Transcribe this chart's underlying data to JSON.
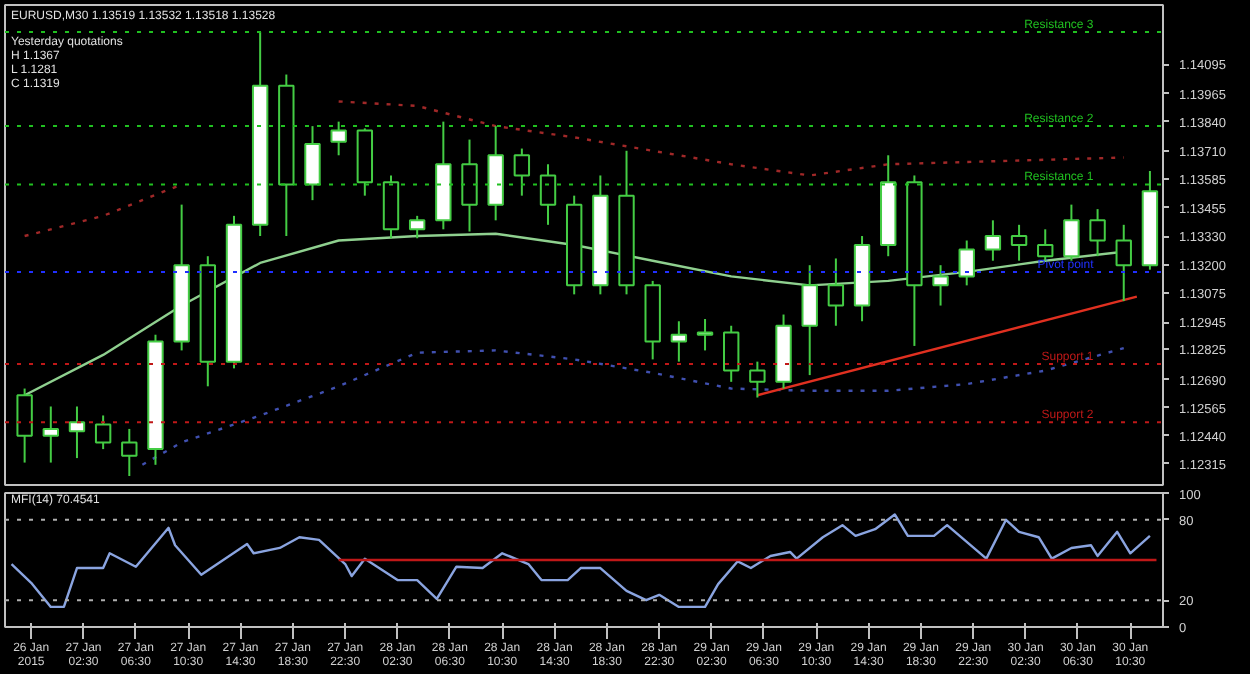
{
  "chart_data": [
    {
      "type": "candlestick",
      "title": "EURUSD,M30  1.13519 1.13532 1.13518 1.13528",
      "color": "#44cc44",
      "annotations": [
        "Yesterday quotations",
        "H 1.1367",
        "L 1.1281",
        "C 1.1319"
      ],
      "x": [
        "2015-01-26T22:00",
        "2015-01-27T00:00",
        "2015-01-27T02:00",
        "2015-01-27T04:00",
        "2015-01-27T06:00",
        "2015-01-27T08:00",
        "2015-01-27T10:00",
        "2015-01-27T12:00",
        "2015-01-27T14:00",
        "2015-01-27T16:00",
        "2015-01-27T18:00",
        "2015-01-27T20:00",
        "2015-01-27T22:00",
        "2015-01-28T00:00",
        "2015-01-28T02:00",
        "2015-01-28T04:00",
        "2015-01-28T06:00",
        "2015-01-28T08:00",
        "2015-01-28T10:00",
        "2015-01-28T12:00",
        "2015-01-28T14:00",
        "2015-01-28T16:00",
        "2015-01-28T18:00",
        "2015-01-28T20:00",
        "2015-01-28T22:00",
        "2015-01-29T00:00",
        "2015-01-29T02:00",
        "2015-01-29T04:00",
        "2015-01-29T06:00",
        "2015-01-29T08:00",
        "2015-01-29T10:00",
        "2015-01-29T12:00",
        "2015-01-29T14:00",
        "2015-01-29T16:00",
        "2015-01-29T18:00",
        "2015-01-29T20:00",
        "2015-01-29T22:00",
        "2015-01-30T00:00",
        "2015-01-30T02:00",
        "2015-01-30T04:00",
        "2015-01-30T06:00",
        "2015-01-30T08:00",
        "2015-01-30T10:00",
        "2015-01-30T12:00"
      ],
      "ohlc": [
        [
          1.1262,
          1.1265,
          1.1232,
          1.1244
        ],
        [
          1.1244,
          1.1257,
          1.1232,
          1.1247
        ],
        [
          1.1246,
          1.1257,
          1.1234,
          1.125
        ],
        [
          1.1249,
          1.1253,
          1.1238,
          1.1241
        ],
        [
          1.1241,
          1.1247,
          1.1226,
          1.1235
        ],
        [
          1.1238,
          1.1289,
          1.1231,
          1.1286
        ],
        [
          1.1286,
          1.1347,
          1.1282,
          1.132
        ],
        [
          1.132,
          1.1324,
          1.1266,
          1.1277
        ],
        [
          1.1277,
          1.1342,
          1.1274,
          1.1338
        ],
        [
          1.1338,
          1.1424,
          1.1333,
          1.14
        ],
        [
          1.14,
          1.1405,
          1.1333,
          1.1356
        ],
        [
          1.1356,
          1.1382,
          1.1349,
          1.1374
        ],
        [
          1.1375,
          1.1384,
          1.1369,
          1.138
        ],
        [
          1.138,
          1.1381,
          1.1351,
          1.1357
        ],
        [
          1.1357,
          1.136,
          1.1332,
          1.1336
        ],
        [
          1.1336,
          1.1342,
          1.1332,
          1.134
        ],
        [
          1.134,
          1.1384,
          1.1336,
          1.1365
        ],
        [
          1.1365,
          1.1376,
          1.1335,
          1.1347
        ],
        [
          1.1347,
          1.1382,
          1.134,
          1.1369
        ],
        [
          1.1369,
          1.1372,
          1.1351,
          1.136
        ],
        [
          1.136,
          1.1365,
          1.1338,
          1.1347
        ],
        [
          1.1347,
          1.1351,
          1.1307,
          1.1311
        ],
        [
          1.1311,
          1.136,
          1.1307,
          1.1351
        ],
        [
          1.1351,
          1.1371,
          1.1307,
          1.1311
        ],
        [
          1.1311,
          1.1313,
          1.1278,
          1.1286
        ],
        [
          1.1286,
          1.1295,
          1.1277,
          1.1289
        ],
        [
          1.1289,
          1.1296,
          1.1282,
          1.129
        ],
        [
          1.129,
          1.1293,
          1.1268,
          1.1273
        ],
        [
          1.1273,
          1.1277,
          1.1261,
          1.1268
        ],
        [
          1.1268,
          1.1298,
          1.1265,
          1.1293
        ],
        [
          1.1293,
          1.132,
          1.1271,
          1.1311
        ],
        [
          1.1311,
          1.1323,
          1.1293,
          1.1302
        ],
        [
          1.1302,
          1.1333,
          1.1295,
          1.1329
        ],
        [
          1.1329,
          1.1369,
          1.1324,
          1.1357
        ],
        [
          1.1357,
          1.136,
          1.1284,
          1.1311
        ],
        [
          1.1311,
          1.132,
          1.1302,
          1.1315
        ],
        [
          1.1315,
          1.1331,
          1.1311,
          1.1327
        ],
        [
          1.1327,
          1.134,
          1.1322,
          1.1333
        ],
        [
          1.1333,
          1.1338,
          1.1322,
          1.1329
        ],
        [
          1.1329,
          1.1336,
          1.1322,
          1.1324
        ],
        [
          1.1324,
          1.1347,
          1.1322,
          1.134
        ],
        [
          1.134,
          1.1345,
          1.1324,
          1.1331
        ],
        [
          1.1331,
          1.1338,
          1.1304,
          1.132
        ],
        [
          1.132,
          1.1362,
          1.1318,
          1.1353
        ]
      ],
      "series": [
        {
          "type": "line",
          "color": "#8fd08f",
          "line_style": "solid",
          "x": [
            "2015-01-26T22:00",
            "2015-01-27T04:00",
            "2015-01-27T10:00",
            "2015-01-27T16:00",
            "2015-01-27T22:00",
            "2015-01-28T04:00",
            "2015-01-28T10:00",
            "2015-01-28T16:00",
            "2015-01-28T22:00",
            "2015-01-29T04:00",
            "2015-01-29T10:00",
            "2015-01-29T16:00",
            "2015-01-29T22:00",
            "2015-01-30T04:00",
            "2015-01-30T10:00"
          ],
          "values": [
            1.1262,
            1.128,
            1.1302,
            1.1321,
            1.1331,
            1.1333,
            1.1334,
            1.1329,
            1.1322,
            1.1315,
            1.1311,
            1.1313,
            1.1317,
            1.1322,
            1.1326
          ]
        },
        {
          "type": "line",
          "color": "#a02828",
          "line_style": "dotted",
          "x": [
            "2015-01-26T22:00",
            "2015-01-27T04:00",
            "2015-01-27T10:00",
            "2015-01-27T16:00",
            "2015-01-27T22:00",
            "2015-01-28T04:00",
            "2015-01-28T10:00",
            "2015-01-28T16:00",
            "2015-01-28T22:00",
            "2015-01-29T04:00",
            "2015-01-29T10:00",
            "2015-01-29T16:00",
            "2015-01-29T22:00",
            "2015-01-30T04:00",
            "2015-01-30T10:00"
          ],
          "values": [
            1.1333,
            1.1342,
            1.1356,
            null,
            1.1393,
            1.1391,
            1.1382,
            1.1377,
            1.1371,
            1.1365,
            1.136,
            1.1365,
            1.1366,
            1.1367,
            1.1368
          ]
        },
        {
          "type": "line",
          "color": "#4050b0",
          "line_style": "dotted",
          "x": [
            "2015-01-27T07:00",
            "2015-01-27T10:00",
            "2015-01-27T16:00",
            "2015-01-27T22:00",
            "2015-01-28T04:00",
            "2015-01-28T10:00",
            "2015-01-28T16:00",
            "2015-01-28T22:00",
            "2015-01-29T04:00",
            "2015-01-29T10:00",
            "2015-01-29T16:00",
            "2015-01-29T22:00",
            "2015-01-30T04:00",
            "2015-01-30T10:00"
          ],
          "values": [
            1.1231,
            1.1241,
            1.1253,
            1.1266,
            1.1281,
            1.1282,
            1.1278,
            1.1272,
            1.1265,
            1.1264,
            1.1264,
            1.1267,
            1.1273,
            1.1283
          ]
        },
        {
          "type": "line",
          "color": "#e03020",
          "line_style": "solid",
          "x": [
            "2015-01-29T06:00",
            "2015-01-30T11:00"
          ],
          "values": [
            1.1262,
            1.1306
          ]
        }
      ],
      "ref_lines": [
        {
          "axis": "y",
          "value": 1.1424,
          "label": "Resistance 3",
          "color": "#20c020",
          "line_style": "dotted"
        },
        {
          "axis": "y",
          "value": 1.1382,
          "label": "Resistance 2",
          "color": "#20c020",
          "line_style": "dotted"
        },
        {
          "axis": "y",
          "value": 1.1356,
          "label": "Resistance 1",
          "color": "#20c020",
          "line_style": "dotted"
        },
        {
          "axis": "y",
          "value": 1.1317,
          "label": "Pivot point",
          "color": "#2030ff",
          "line_style": "dotted"
        },
        {
          "axis": "y",
          "value": 1.1276,
          "label": "Support 1",
          "color": "#c01818",
          "line_style": "dotted"
        },
        {
          "axis": "y",
          "value": 1.125,
          "label": "Support 2",
          "color": "#c01818",
          "line_style": "dotted"
        }
      ],
      "xlim": [
        "2015-01-26T20:30",
        "2015-01-30T13:00"
      ],
      "ylim": [
        1.1222,
        1.1436
      ],
      "yticks": [
        {
          "value": 1.12315,
          "label": "1.12315"
        },
        {
          "value": 1.1244,
          "label": "1.12440"
        },
        {
          "value": 1.12565,
          "label": "1.12565"
        },
        {
          "value": 1.1269,
          "label": "1.12690"
        },
        {
          "value": 1.12825,
          "label": "1.12825"
        },
        {
          "value": 1.12945,
          "label": "1.12945"
        },
        {
          "value": 1.13075,
          "label": "1.13075"
        },
        {
          "value": 1.132,
          "label": "1.13200"
        },
        {
          "value": 1.1333,
          "label": "1.13330"
        },
        {
          "value": 1.13455,
          "label": "1.13455"
        },
        {
          "value": 1.13585,
          "label": "1.13585"
        },
        {
          "value": 1.1371,
          "label": "1.13710"
        },
        {
          "value": 1.1384,
          "label": "1.13840"
        },
        {
          "value": 1.13965,
          "label": "1.13965"
        },
        {
          "value": 1.14095,
          "label": "1.14095"
        }
      ],
      "tick_labels": "y"
    },
    {
      "type": "line",
      "title": "MFI(14) 70.4541",
      "series": [
        {
          "type": "line",
          "color": "#8aa4e0",
          "line_style": "solid",
          "x": [
            "2015-01-26T21:00",
            "2015-01-26T22:30",
            "2015-01-27T00:00",
            "2015-01-27T01:00",
            "2015-01-27T02:00",
            "2015-01-27T04:00",
            "2015-01-27T04:30",
            "2015-01-27T06:30",
            "2015-01-27T09:00",
            "2015-01-27T09:30",
            "2015-01-27T11:30",
            "2015-01-27T15:00",
            "2015-01-27T15:30",
            "2015-01-27T17:30",
            "2015-01-27T19:00",
            "2015-01-27T20:30",
            "2015-01-27T22:30",
            "2015-01-27T23:00",
            "2015-01-28T00:00",
            "2015-01-28T02:30",
            "2015-01-28T04:00",
            "2015-01-28T05:30",
            "2015-01-28T07:00",
            "2015-01-28T09:00",
            "2015-01-28T10:30",
            "2015-01-28T12:30",
            "2015-01-28T13:30",
            "2015-01-28T15:30",
            "2015-01-28T16:30",
            "2015-01-28T18:00",
            "2015-01-28T20:00",
            "2015-01-28T21:30",
            "2015-01-28T22:30",
            "2015-01-29T00:00",
            "2015-01-29T02:00",
            "2015-01-29T03:00",
            "2015-01-29T04:30",
            "2015-01-29T05:30",
            "2015-01-29T07:00",
            "2015-01-29T08:30",
            "2015-01-29T09:00",
            "2015-01-29T11:00",
            "2015-01-29T12:30",
            "2015-01-29T13:30",
            "2015-01-29T15:00",
            "2015-01-29T16:30",
            "2015-01-29T17:30",
            "2015-01-29T19:30",
            "2015-01-29T20:30",
            "2015-01-29T23:30",
            "2015-01-30T01:00",
            "2015-01-30T02:00",
            "2015-01-30T03:30",
            "2015-01-30T04:30",
            "2015-01-30T06:00",
            "2015-01-30T07:30",
            "2015-01-30T08:00",
            "2015-01-30T09:30",
            "2015-01-30T10:30",
            "2015-01-30T12:00"
          ],
          "values": [
            47,
            33,
            15,
            15,
            44,
            44,
            55,
            45,
            74,
            61,
            39,
            62,
            55,
            59,
            67,
            65,
            47,
            38,
            51,
            35,
            35,
            21,
            45,
            44,
            55,
            47,
            35,
            35,
            44,
            44,
            27,
            20,
            24,
            15,
            15,
            32,
            49,
            44,
            53,
            56,
            51,
            67,
            76,
            68,
            73,
            84,
            68,
            68,
            76,
            51,
            80,
            71,
            67,
            51,
            59,
            61,
            53,
            71,
            55,
            68
          ]
        },
        {
          "type": "line",
          "color": "#c01818",
          "line_style": "solid",
          "x": [
            "2015-01-27T22:00",
            "2015-01-30T12:30"
          ],
          "values": [
            50,
            50
          ]
        }
      ],
      "ref_lines": [
        {
          "axis": "y",
          "value": 80,
          "color": "#b0b0b0",
          "line_style": "dotted"
        },
        {
          "axis": "y",
          "value": 20,
          "color": "#b0b0b0",
          "line_style": "dotted"
        }
      ],
      "xlim": [
        "2015-01-26T20:30",
        "2015-01-30T13:00"
      ],
      "ylim": [
        0,
        100
      ],
      "yticks": [
        0,
        20,
        80,
        100
      ],
      "xticks": [
        {
          "value": "2015-01-26T22:30",
          "label": "26 Jan 2015"
        },
        {
          "value": "2015-01-27T02:30",
          "label": "27 Jan 02:30"
        },
        {
          "value": "2015-01-27T06:30",
          "label": "27 Jan 06:30"
        },
        {
          "value": "2015-01-27T10:30",
          "label": "27 Jan 10:30"
        },
        {
          "value": "2015-01-27T14:30",
          "label": "27 Jan 14:30"
        },
        {
          "value": "2015-01-27T18:30",
          "label": "27 Jan 18:30"
        },
        {
          "value": "2015-01-27T22:30",
          "label": "27 Jan 22:30"
        },
        {
          "value": "2015-01-28T02:30",
          "label": "28 Jan 02:30"
        },
        {
          "value": "2015-01-28T06:30",
          "label": "28 Jan 06:30"
        },
        {
          "value": "2015-01-28T10:30",
          "label": "28 Jan 10:30"
        },
        {
          "value": "2015-01-28T14:30",
          "label": "28 Jan 14:30"
        },
        {
          "value": "2015-01-28T18:30",
          "label": "28 Jan 18:30"
        },
        {
          "value": "2015-01-28T22:30",
          "label": "28 Jan 22:30"
        },
        {
          "value": "2015-01-29T02:30",
          "label": "29 Jan 02:30"
        },
        {
          "value": "2015-01-29T06:30",
          "label": "29 Jan 06:30"
        },
        {
          "value": "2015-01-29T10:30",
          "label": "29 Jan 10:30"
        },
        {
          "value": "2015-01-29T14:30",
          "label": "29 Jan 14:30"
        },
        {
          "value": "2015-01-29T18:30",
          "label": "29 Jan 18:30"
        },
        {
          "value": "2015-01-29T22:30",
          "label": "29 Jan 22:30"
        },
        {
          "value": "2015-01-30T02:30",
          "label": "30 Jan 02:30"
        },
        {
          "value": "2015-01-30T06:30",
          "label": "30 Jan 06:30"
        },
        {
          "value": "2015-01-30T10:30",
          "label": "30 Jan 10:30"
        }
      ]
    }
  ]
}
